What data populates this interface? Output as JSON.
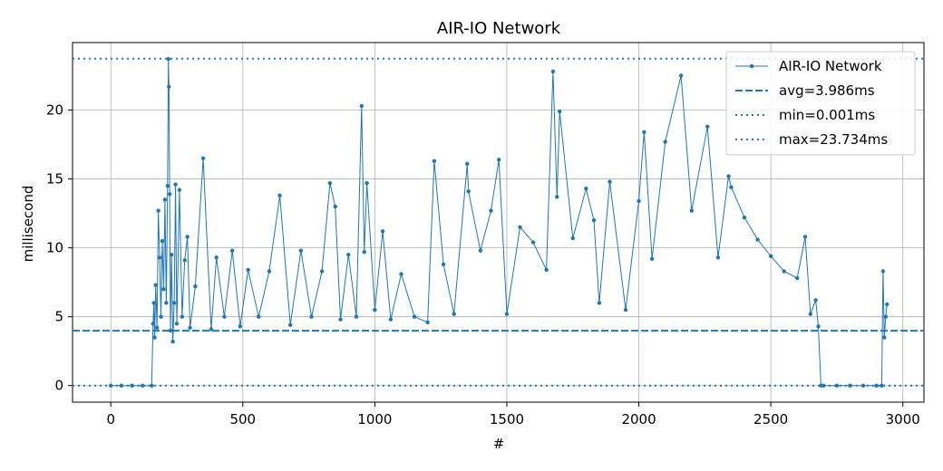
{
  "chart_data": {
    "type": "line",
    "title": "AIR-IO Network",
    "xlabel": "#",
    "ylabel": "millisecond",
    "xlim": [
      -145,
      3080
    ],
    "ylim": [
      -1.2,
      24.9
    ],
    "xticks": [
      0,
      500,
      1000,
      1500,
      2000,
      2500,
      3000
    ],
    "yticks": [
      0,
      5,
      10,
      15,
      20
    ],
    "grid": true,
    "legend_position": "top-right",
    "series": [
      {
        "name": "AIR-IO Network",
        "style": "line-with-dots",
        "color": "#1f77b4",
        "x": [
          0,
          40,
          80,
          120,
          155,
          160,
          163,
          166,
          170,
          175,
          180,
          185,
          190,
          195,
          200,
          205,
          210,
          215,
          218,
          220,
          223,
          226,
          230,
          235,
          240,
          245,
          250,
          260,
          270,
          280,
          290,
          300,
          320,
          350,
          380,
          400,
          430,
          460,
          490,
          520,
          560,
          600,
          640,
          680,
          720,
          760,
          800,
          830,
          850,
          870,
          900,
          930,
          950,
          960,
          970,
          1000,
          1030,
          1060,
          1100,
          1150,
          1200,
          1225,
          1260,
          1300,
          1350,
          1355,
          1400,
          1440,
          1470,
          1500,
          1550,
          1600,
          1650,
          1675,
          1690,
          1700,
          1750,
          1800,
          1830,
          1850,
          1890,
          1950,
          2000,
          2020,
          2050,
          2100,
          2160,
          2200,
          2260,
          2300,
          2340,
          2350,
          2400,
          2450,
          2500,
          2550,
          2600,
          2630,
          2650,
          2670,
          2680,
          2690,
          2700,
          2750,
          2800,
          2850,
          2900,
          2920,
          2925,
          2930,
          2935,
          2940
        ],
        "y": [
          0,
          0,
          0,
          0,
          0,
          4.5,
          6,
          3.5,
          7.3,
          4.2,
          12.7,
          9.3,
          5,
          10.5,
          7,
          13.5,
          6,
          14.5,
          23.7,
          21.7,
          13.9,
          4,
          9.5,
          3.2,
          6,
          14.6,
          4.5,
          14.2,
          5,
          9.1,
          10.8,
          4.2,
          7.2,
          16.5,
          4.1,
          9.3,
          5,
          9.8,
          4.3,
          8.4,
          5,
          8.3,
          13.8,
          4.4,
          9.8,
          5,
          8.3,
          14.7,
          13,
          4.8,
          9.5,
          5,
          20.3,
          9.7,
          14.7,
          5.5,
          11.2,
          4.8,
          8.1,
          5,
          4.6,
          16.3,
          8.8,
          5.2,
          16.1,
          14.1,
          9.8,
          12.7,
          16.4,
          5.2,
          11.5,
          10.4,
          8.4,
          22.8,
          13.7,
          19.9,
          10.7,
          14.3,
          12,
          6,
          14.8,
          5.5,
          13.4,
          18.4,
          9.2,
          17.7,
          22.5,
          12.7,
          18.8,
          9.3,
          15.2,
          14.4,
          12.2,
          10.6,
          9.4,
          8.3,
          7.8,
          10.8,
          5.2,
          6.2,
          4.3,
          0,
          0,
          0,
          0,
          0,
          0,
          0,
          8.3,
          3.5,
          5,
          5.9
        ]
      },
      {
        "name": "avg=3.986ms",
        "style": "dashed",
        "color": "#1f77b4",
        "y": 3.986
      },
      {
        "name": "min=0.001ms",
        "style": "dotted",
        "color": "#1f77b4",
        "y": 0.001
      },
      {
        "name": "max=23.734ms",
        "style": "dotted",
        "color": "#1f77b4",
        "y": 23.734
      }
    ]
  }
}
